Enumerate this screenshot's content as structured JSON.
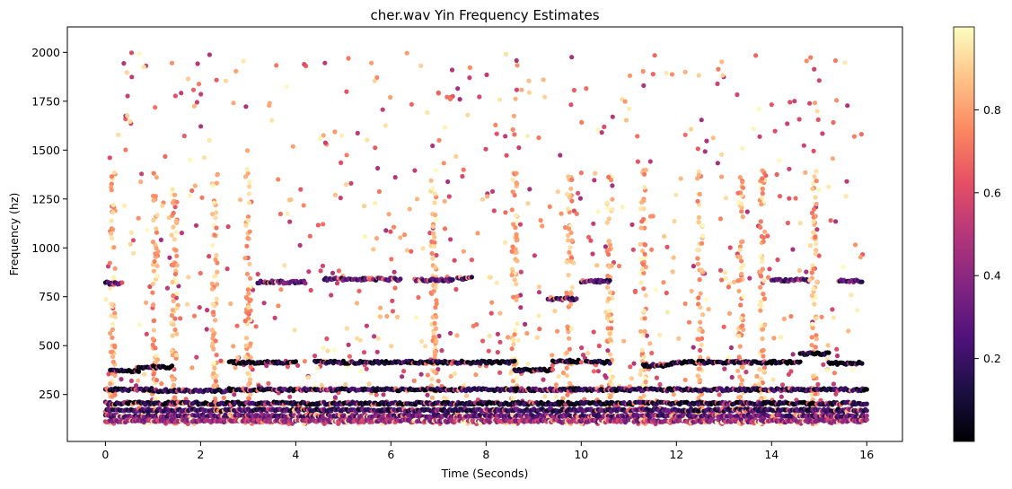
{
  "chart_data": {
    "type": "scatter",
    "title": "cher.wav Yin Frequency Estimates",
    "xlabel": "Time (Seconds)",
    "ylabel": "Frequency (hz)",
    "xlim": [
      -0.8,
      16.75
    ],
    "ylim": [
      10,
      2130
    ],
    "xticks": [
      0,
      2,
      4,
      6,
      8,
      10,
      12,
      14,
      16
    ],
    "yticks": [
      250,
      500,
      750,
      1000,
      1250,
      1500,
      1750,
      2000
    ],
    "colorbar": {
      "colormap": "magma",
      "range": [
        0,
        1
      ],
      "ticks": [
        0.2,
        0.4,
        0.6,
        0.8
      ]
    },
    "grid": false,
    "legend": "none",
    "x_range_of_points": [
      0,
      15.95
    ],
    "tracks": [
      {
        "segments": [
          [
            0,
            0.35,
            820
          ],
          [
            3.2,
            4.2,
            825
          ],
          [
            4.6,
            6.2,
            840
          ],
          [
            6.5,
            7.3,
            835
          ],
          [
            7.4,
            7.7,
            845
          ],
          [
            9.3,
            9.9,
            740
          ],
          [
            10,
            10.6,
            830
          ],
          [
            14.0,
            14.8,
            835
          ],
          [
            15.4,
            15.9,
            830
          ]
        ],
        "confidence": 0.25
      },
      {
        "segments": [
          [
            0.1,
            0.7,
            370
          ],
          [
            0.7,
            1.4,
            390
          ],
          [
            2.6,
            4.0,
            415
          ],
          [
            4.4,
            8.6,
            415
          ],
          [
            8.6,
            9.4,
            375
          ],
          [
            9.4,
            10.0,
            420
          ],
          [
            10.1,
            10.6,
            415
          ],
          [
            11.3,
            11.9,
            400
          ],
          [
            11.9,
            14.6,
            415
          ],
          [
            14.6,
            15.2,
            460
          ],
          [
            15.2,
            15.9,
            410
          ]
        ],
        "confidence": 0.05
      },
      {
        "segments": [
          [
            0,
            1.0,
            275
          ],
          [
            1.0,
            2.6,
            270
          ],
          [
            2.6,
            16,
            275
          ]
        ],
        "confidence": 0.15
      },
      {
        "segments": [
          [
            0,
            16,
            205
          ]
        ],
        "confidence": 0.1
      },
      {
        "segments": [
          [
            0,
            16,
            170
          ]
        ],
        "confidence": 0.2
      },
      {
        "segments": [
          [
            0,
            16,
            140
          ]
        ],
        "confidence": 0.3
      },
      {
        "segments": [
          [
            0,
            16,
            115
          ]
        ],
        "confidence": 0.45
      }
    ],
    "vertical_bursts": [
      0.15,
      1.05,
      1.45,
      2.3,
      3.0,
      6.9,
      8.6,
      9.75,
      10.6,
      11.3,
      12.5,
      13.35,
      13.8,
      14.9
    ]
  }
}
